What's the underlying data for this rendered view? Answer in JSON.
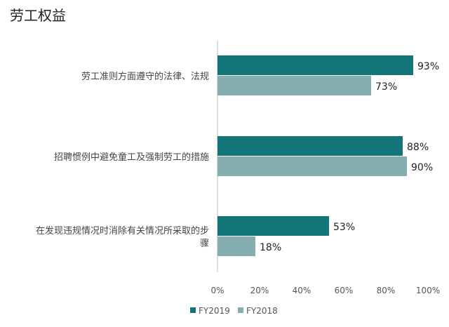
{
  "chart_data": {
    "type": "bar",
    "orientation": "horizontal",
    "title": "劳工权益",
    "categories": [
      "劳工准则方面遵守的法律、法规",
      "招聘惯例中避免童工及强制劳工的措施",
      "在发现违规情况时消除有关情况所采取的步骤"
    ],
    "series": [
      {
        "name": "FY2019",
        "values": [
          93,
          88,
          53
        ],
        "labels": [
          "93%",
          "88%",
          "53%"
        ]
      },
      {
        "name": "FY2018",
        "values": [
          73,
          90,
          18
        ],
        "labels": [
          "73%",
          "90%",
          "18%"
        ]
      }
    ],
    "xlim": [
      0,
      100
    ],
    "xticks": [
      "0%",
      "20%",
      "40%",
      "60%",
      "80%",
      "100%"
    ],
    "legend": "bottom",
    "grid": false,
    "colors": [
      "#137577",
      "#85aeb1"
    ]
  }
}
